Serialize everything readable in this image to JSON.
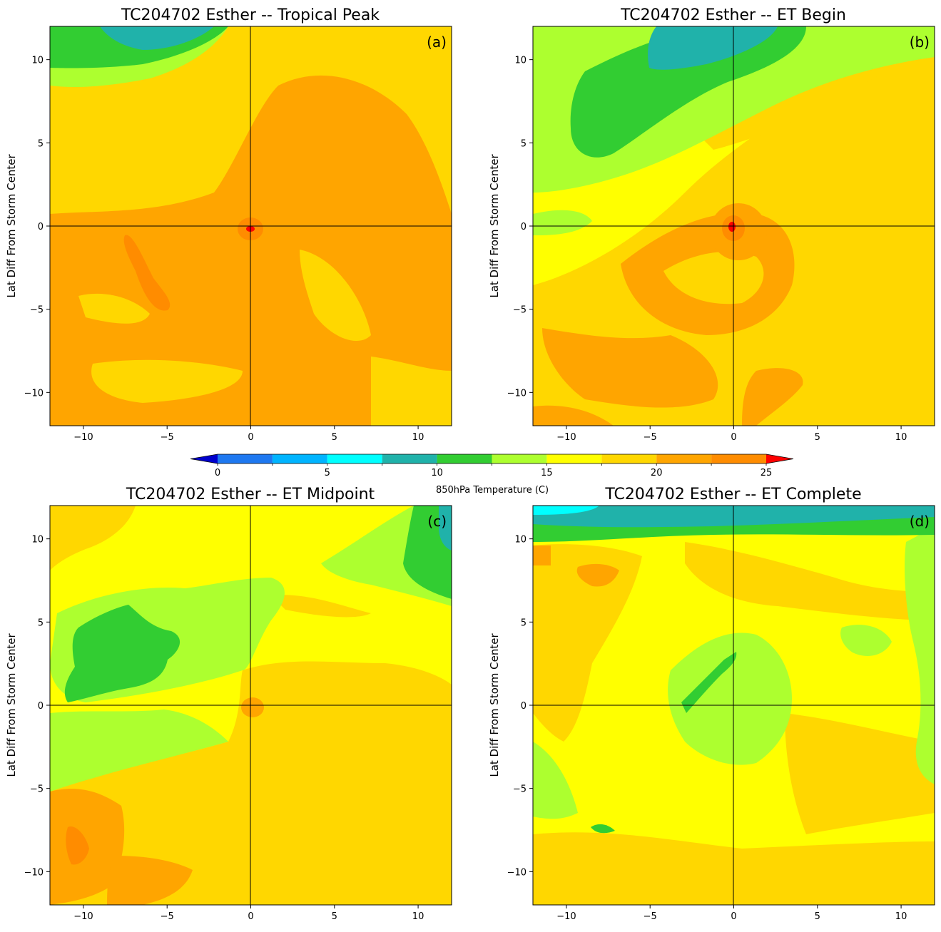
{
  "palette": {
    "c_le0": "#0000cd",
    "c_0": "#1e78f0",
    "c_2_5": "#00b4ff",
    "c_5": "#00ffff",
    "c_7_5": "#20b2aa",
    "c_10": "#32cd32",
    "c_12_5": "#adff2f",
    "c_15": "#ffff00",
    "c_17_5": "#ffd700",
    "c_20": "#ffa500",
    "c_22_5": "#ff8c00",
    "c_ge25": "#ff0000"
  },
  "chart_data": [
    {
      "type": "heatmap",
      "panel_label": "(a)",
      "title": "TC204702 Esther -- Tropical Peak",
      "xlabel": "",
      "ylabel": "Lat Diff From Storm Center",
      "xlim": [
        -12,
        12
      ],
      "ylim": [
        -12,
        12
      ],
      "xticks": [
        "−10",
        "−5",
        "0",
        "5",
        "10"
      ],
      "yticks": [
        "−10",
        "−5",
        "0",
        "5",
        "10"
      ],
      "crosshair_at": [
        0,
        0
      ],
      "dominant_range_C": [
        17.5,
        22.5
      ],
      "field_summary": "Mostly 17.5–22.5 C; cooler 7.5–15 C band in NW corner; 25+ C core at storm center"
    },
    {
      "type": "heatmap",
      "panel_label": "(b)",
      "title": "TC204702 Esther -- ET Begin",
      "xlabel": "",
      "ylabel": "Lat Diff From Storm Center",
      "xlim": [
        -12,
        12
      ],
      "ylim": [
        -12,
        12
      ],
      "xticks": [
        "−10",
        "−5",
        "0",
        "5",
        "10"
      ],
      "yticks": [
        "−10",
        "−5",
        "0",
        "5",
        "10"
      ],
      "crosshair_at": [
        0,
        0
      ],
      "dominant_range_C": [
        12.5,
        22.5
      ],
      "field_summary": "Cooler 7.5–15 C air to the north/northwest; 17.5–22.5 C spiral band to the south; 25+ C core at center"
    },
    {
      "type": "heatmap",
      "panel_label": "(c)",
      "title": "TC204702 Esther -- ET Midpoint",
      "xlabel": "",
      "ylabel": "Lat Diff From Storm Center",
      "xlim": [
        -12,
        12
      ],
      "ylim": [
        -12,
        12
      ],
      "xticks": [
        "−10",
        "−5",
        "0",
        "5",
        "10"
      ],
      "yticks": [
        "−10",
        "−5",
        "0",
        "5",
        "10"
      ],
      "crosshair_at": [
        0,
        0
      ],
      "dominant_range_C": [
        10,
        22.5
      ],
      "field_summary": "10–12.5 C patch west-northwest; 12.5–17.5 C across north; 17.5–20 C in south and east"
    },
    {
      "type": "heatmap",
      "panel_label": "(d)",
      "title": "TC204702 Esther -- ET Complete",
      "xlabel": "",
      "ylabel": "Lat Diff From Storm Center",
      "xlim": [
        -12,
        12
      ],
      "ylim": [
        -12,
        12
      ],
      "xticks": [
        "−10",
        "−5",
        "0",
        "5",
        "10"
      ],
      "yticks": [
        "−10",
        "−5",
        "0",
        "5",
        "10"
      ],
      "crosshair_at": [
        0,
        0
      ],
      "dominant_range_C": [
        5,
        20
      ],
      "field_summary": "Sharp 5–12.5 C gradient at northern edge; mostly 15–17.5 C; 12.5–15 C area near and east of center"
    },
    {
      "type": "colorbar",
      "label": "850hPa Temperature (C)",
      "levels": [
        0,
        2.5,
        5,
        7.5,
        10,
        12.5,
        15,
        17.5,
        20,
        22.5,
        25
      ],
      "tick_labels": [
        "0",
        "5",
        "10",
        "15",
        "20",
        "25"
      ],
      "extend": "both"
    }
  ]
}
